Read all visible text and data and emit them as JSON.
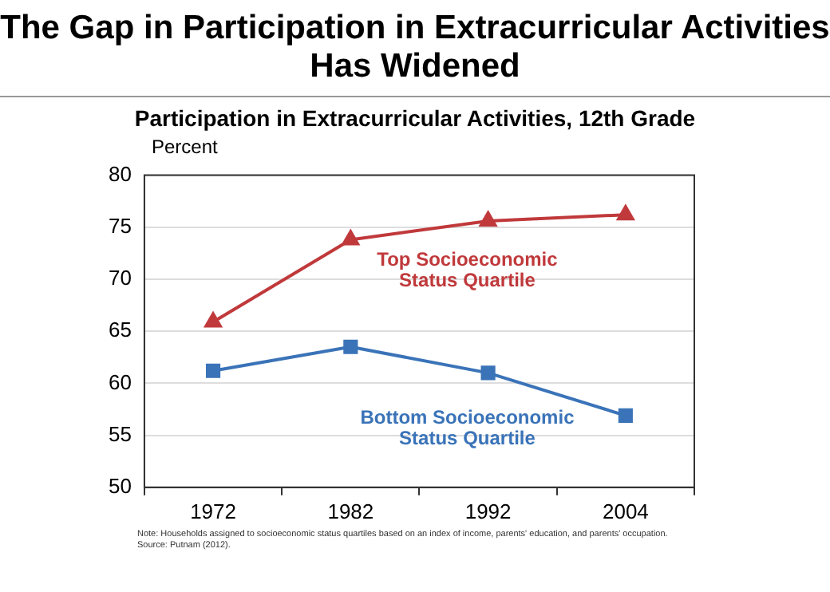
{
  "chart_data": {
    "type": "line",
    "title": "The Gap in Participation in Extracurricular Activities Has Widened",
    "subtitle": "Participation in Extracurricular Activities, 12th Grade",
    "ylabel": "Percent",
    "categories": [
      "1972",
      "1982",
      "1992",
      "2004"
    ],
    "series": [
      {
        "name": "Top Socioeconomic Status Quartile",
        "color": "#c0393b",
        "marker": "triangle",
        "values": [
          65.9,
          73.8,
          75.6,
          76.2
        ]
      },
      {
        "name": "Bottom Socioeconomic Status Quartile",
        "color": "#3a73b8",
        "marker": "square",
        "values": [
          61.2,
          63.5,
          61.0,
          56.9
        ]
      }
    ],
    "ylim": [
      50,
      80
    ],
    "yticks": [
      50,
      55,
      60,
      65,
      70,
      75,
      80
    ],
    "grid": "y",
    "legend": false,
    "annotations": [
      "Note: Households assigned to socioeconomic status quartiles based on an index of income, parents' education, and parents' occupation.",
      "Source: Putnam (2012)."
    ]
  }
}
